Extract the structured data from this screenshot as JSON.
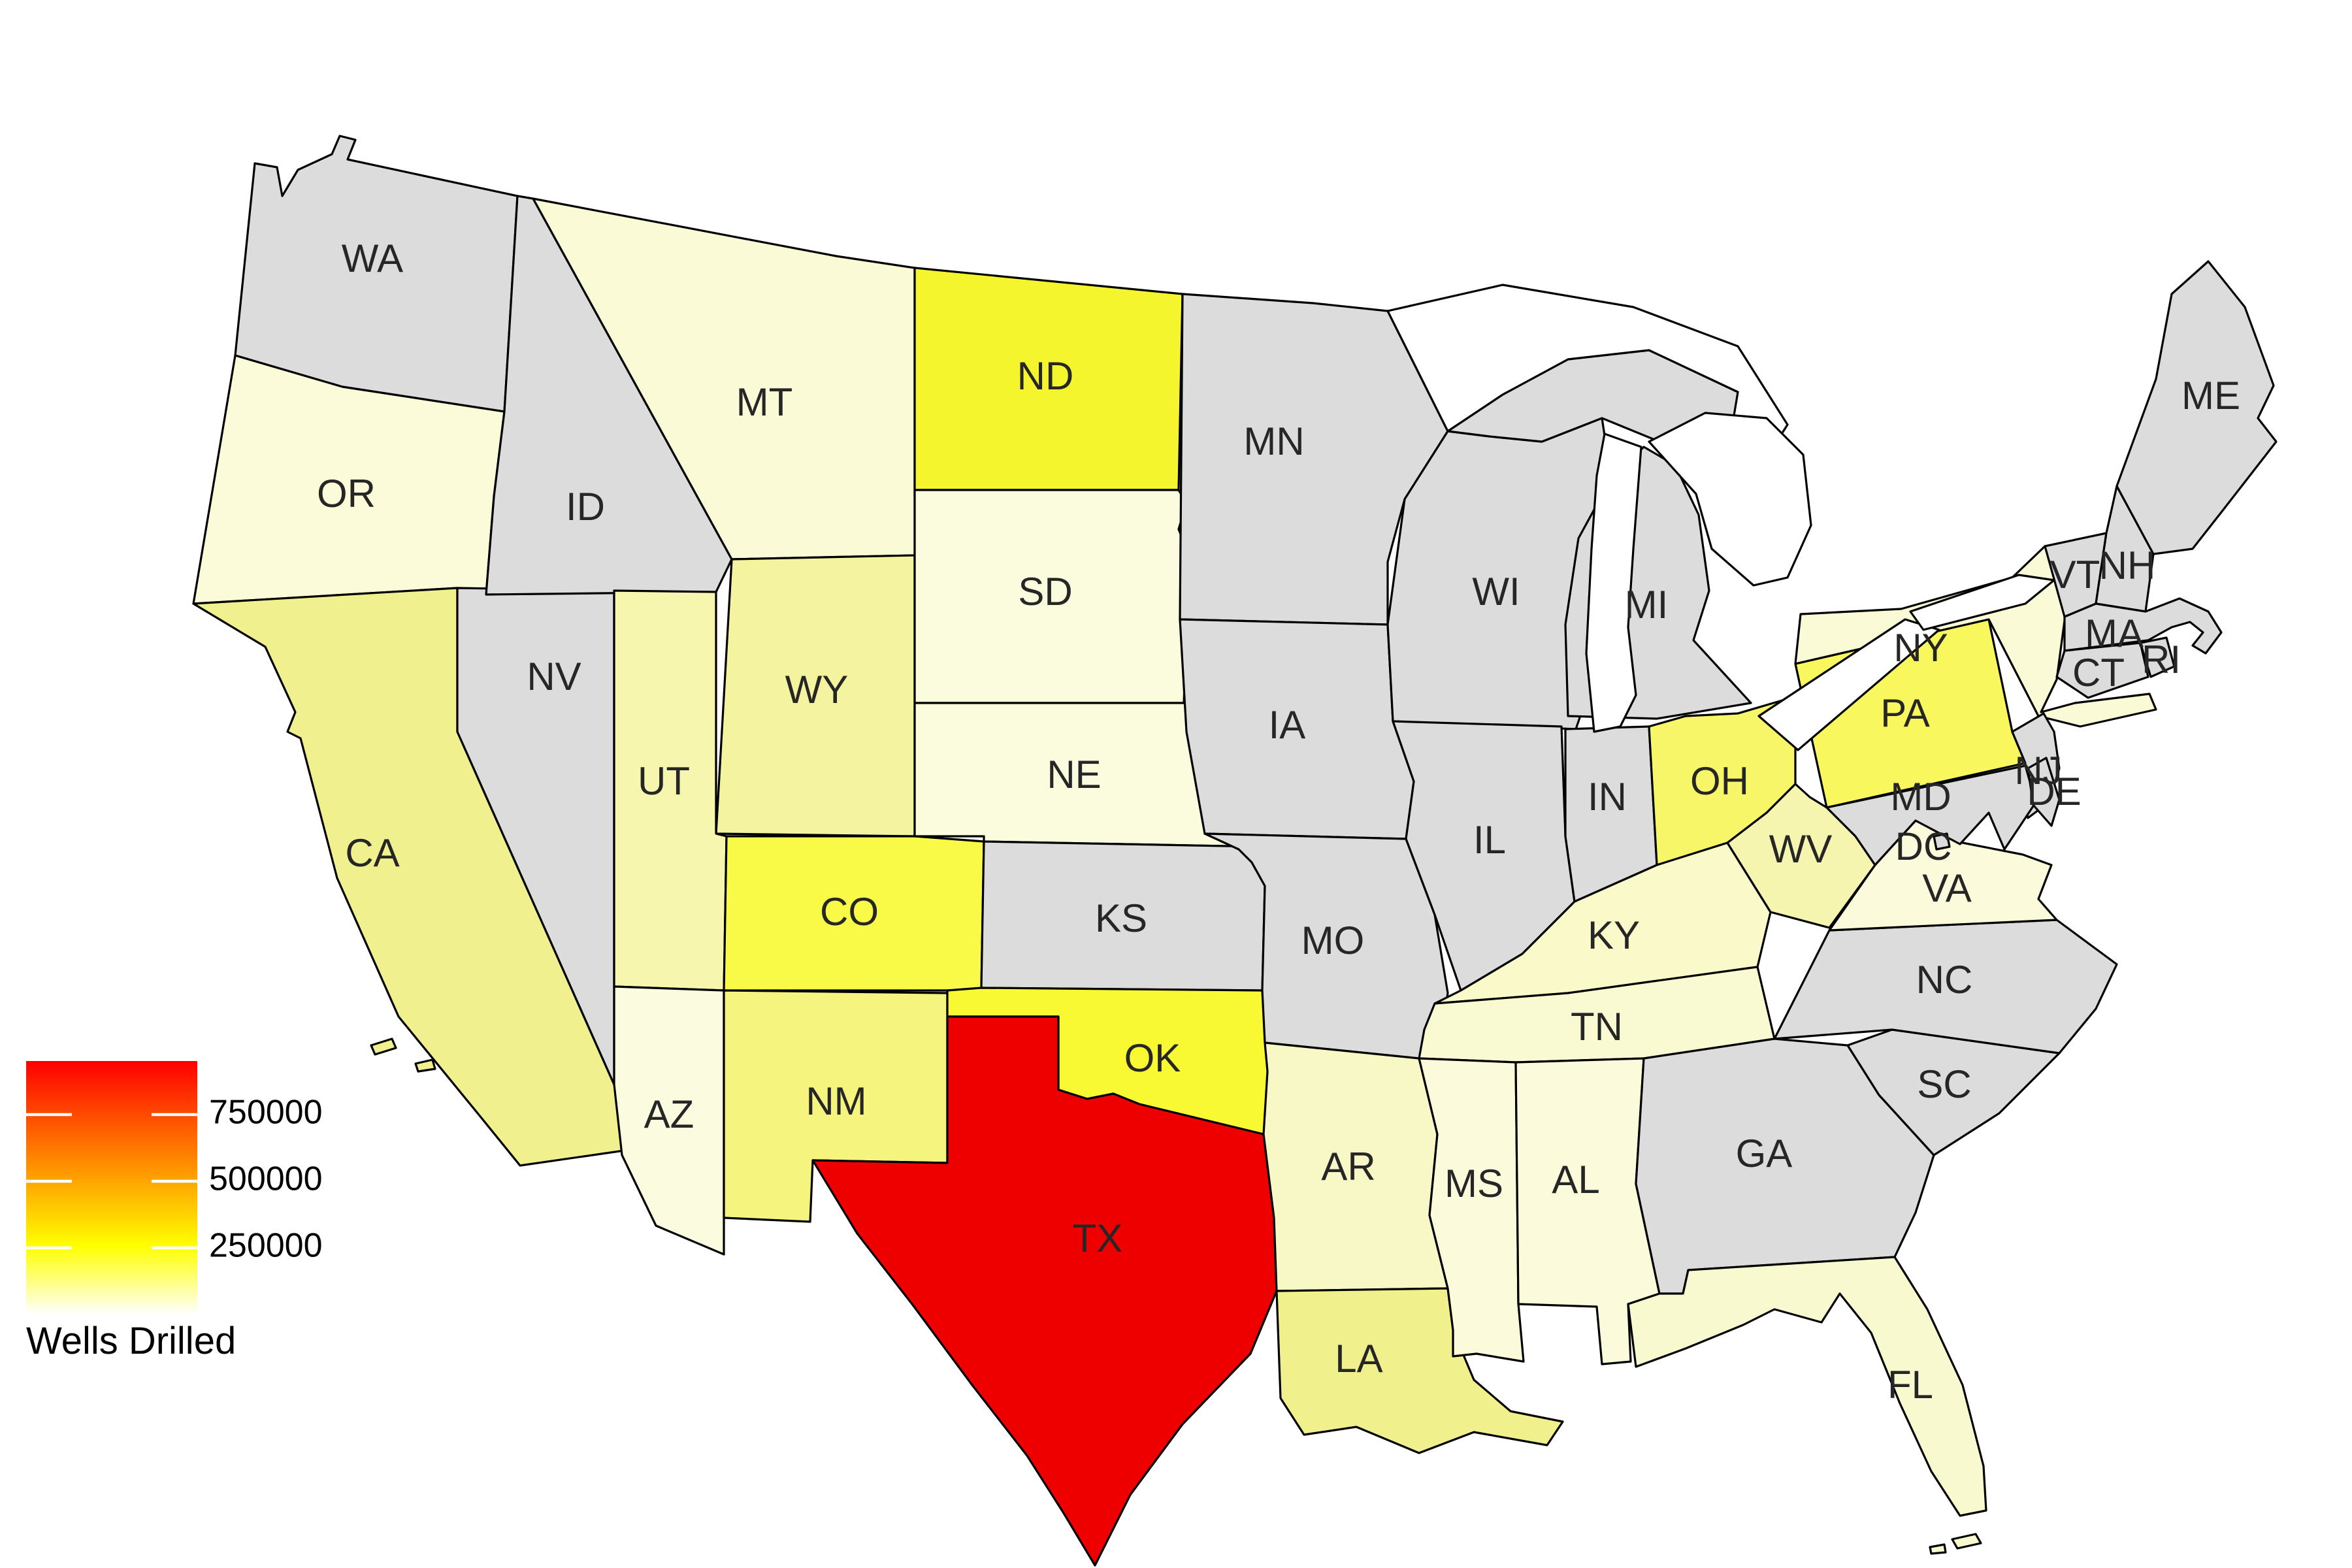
{
  "page": {
    "background": "#ffffff",
    "border_color": "#000000"
  },
  "chart_data": {
    "type": "choropleth",
    "title": "Wells Drilled",
    "legend_title": "Wells Drilled",
    "unit": "wells drilled",
    "colorbar": {
      "orientation": "vertical",
      "gradient_stops": [
        {
          "offset": "0%",
          "color": "#ff0000"
        },
        {
          "offset": "73%",
          "color": "#ffff00"
        },
        {
          "offset": "100%",
          "color": "#ffffff"
        }
      ],
      "ticks": [
        {
          "label": "750000",
          "value": 750000
        },
        {
          "label": "500000",
          "value": 500000
        },
        {
          "label": "250000",
          "value": 250000
        }
      ],
      "value_range_estimate": [
        0,
        950000
      ],
      "no_data_color": "#dcdcdc"
    },
    "states": {
      "WA": {
        "label": "WA",
        "color": "#dcdcdc",
        "estimated_wells": null
      },
      "OR": {
        "label": "OR",
        "color": "#fbfbda",
        "estimated_wells": 40000
      },
      "CA": {
        "label": "CA",
        "color": "#f0f08e",
        "estimated_wells": 130000
      },
      "ID": {
        "label": "ID",
        "color": "#dcdcdc",
        "estimated_wells": null
      },
      "NV": {
        "label": "NV",
        "color": "#dcdcdc",
        "estimated_wells": null
      },
      "MT": {
        "label": "MT",
        "color": "#fafad6",
        "estimated_wells": 48000
      },
      "WY": {
        "label": "WY",
        "color": "#f3f3a0",
        "estimated_wells": 110000
      },
      "UT": {
        "label": "UT",
        "color": "#f6f6ae",
        "estimated_wells": 95000
      },
      "CO": {
        "label": "CO",
        "color": "#f9f948",
        "estimated_wells": 210000
      },
      "AZ": {
        "label": "AZ",
        "color": "#fbfbdf",
        "estimated_wells": 28000
      },
      "NM": {
        "label": "NM",
        "color": "#f4f47e",
        "estimated_wells": 150000
      },
      "ND": {
        "label": "ND",
        "color": "#f5f52e",
        "estimated_wells": 230000
      },
      "SD": {
        "label": "SD",
        "color": "#fbfbdd",
        "estimated_wells": 38000
      },
      "NE": {
        "label": "NE",
        "color": "#fbfbdd",
        "estimated_wells": 38000
      },
      "KS": {
        "label": "KS",
        "color": "#dcdcdc",
        "estimated_wells": null
      },
      "OK": {
        "label": "OK",
        "color": "#f8f833",
        "estimated_wells": 225000
      },
      "TX": {
        "label": "TX",
        "color": "#ee0000",
        "estimated_wells": 950000
      },
      "MN": {
        "label": "MN",
        "color": "#dcdcdc",
        "estimated_wells": null
      },
      "IA": {
        "label": "IA",
        "color": "#dcdcdc",
        "estimated_wells": null
      },
      "MO": {
        "label": "MO",
        "color": "#dcdcdc",
        "estimated_wells": null
      },
      "AR": {
        "label": "AR",
        "color": "#f8f8c6",
        "estimated_wells": 70000
      },
      "LA": {
        "label": "LA",
        "color": "#f0f08c",
        "estimated_wells": 140000
      },
      "WI": {
        "label": "WI",
        "color": "#dcdcdc",
        "estimated_wells": null
      },
      "IL": {
        "label": "IL",
        "color": "#dcdcdc",
        "estimated_wells": null
      },
      "IN": {
        "label": "IN",
        "color": "#dcdcdc",
        "estimated_wells": null
      },
      "MI": {
        "label": "MI",
        "color": "#dcdcdc",
        "estimated_wells": null
      },
      "OH": {
        "label": "OH",
        "color": "#f6f668",
        "estimated_wells": 170000
      },
      "KY": {
        "label": "KY",
        "color": "#f9f9ca",
        "estimated_wells": 65000
      },
      "TN": {
        "label": "TN",
        "color": "#fafad2",
        "estimated_wells": 45000
      },
      "MS": {
        "label": "MS",
        "color": "#fbfbdb",
        "estimated_wells": 38000
      },
      "AL": {
        "label": "AL",
        "color": "#fbfbdb",
        "estimated_wells": 38000
      },
      "GA": {
        "label": "GA",
        "color": "#dcdcdc",
        "estimated_wells": null
      },
      "FL": {
        "label": "FL",
        "color": "#f9f9d0",
        "estimated_wells": 55000
      },
      "SC": {
        "label": "SC",
        "color": "#dcdcdc",
        "estimated_wells": null
      },
      "NC": {
        "label": "NC",
        "color": "#dcdcdc",
        "estimated_wells": null
      },
      "VA": {
        "label": "VA",
        "color": "#fbfbdc",
        "estimated_wells": 33000
      },
      "WV": {
        "label": "WV",
        "color": "#f5f5b0",
        "estimated_wells": 90000
      },
      "PA": {
        "label": "PA",
        "color": "#f8f85e",
        "estimated_wells": 185000
      },
      "NY": {
        "label": "NY",
        "color": "#fafad6",
        "estimated_wells": 45000
      },
      "NJ": {
        "label": "NJ",
        "color": "#dcdcdc",
        "estimated_wells": null
      },
      "MD": {
        "label": "MD",
        "color": "#dcdcdc",
        "estimated_wells": null
      },
      "DE": {
        "label": "DE",
        "color": "#dcdcdc",
        "estimated_wells": null
      },
      "DC": {
        "label": "DC",
        "color": "#dcdcdc",
        "estimated_wells": null
      },
      "VT": {
        "label": "VT",
        "color": "#dcdcdc",
        "estimated_wells": null
      },
      "NH": {
        "label": "NH",
        "color": "#dcdcdc",
        "estimated_wells": null
      },
      "MA": {
        "label": "MA",
        "color": "#dcdcdc",
        "estimated_wells": null
      },
      "CT": {
        "label": "CT",
        "color": "#dcdcdc",
        "estimated_wells": null
      },
      "RI": {
        "label": "RI",
        "color": "#dcdcdc",
        "estimated_wells": null
      },
      "ME": {
        "label": "ME",
        "color": "#dcdcdc",
        "estimated_wells": null
      }
    }
  }
}
